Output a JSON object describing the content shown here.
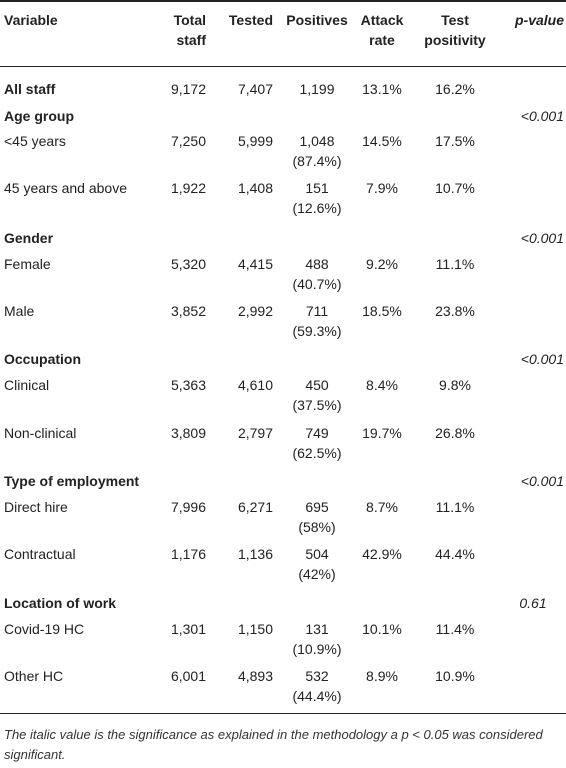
{
  "header": {
    "variable": "Variable",
    "total_staff_l1": "Total",
    "total_staff_l2": "staff",
    "tested": "Tested",
    "positives": "Positives",
    "attack_rate_l1": "Attack",
    "attack_rate_l2": "rate",
    "test_positivity_l1": "Test",
    "test_positivity_l2": "positivity",
    "p_value": "p-value"
  },
  "all_staff": {
    "label": "All staff",
    "total": "9,172",
    "tested": "7,407",
    "positives": "1,199",
    "attack_rate": "13.1%",
    "test_positivity": "16.2%"
  },
  "age": {
    "label": "Age group",
    "p_value": "<0.001",
    "rows": [
      {
        "label": "<45 years",
        "total": "7,250",
        "tested": "5,999",
        "positives": "1,048",
        "positives_pct": "(87.4%)",
        "attack_rate": "14.5%",
        "test_positivity": "17.5%"
      },
      {
        "label": "45 years and above",
        "total": "1,922",
        "tested": "1,408",
        "positives": "151",
        "positives_pct": "(12.6%)",
        "attack_rate": "7.9%",
        "test_positivity": "10.7%"
      }
    ]
  },
  "gender": {
    "label": "Gender",
    "p_value": "<0.001",
    "rows": [
      {
        "label": "Female",
        "total": "5,320",
        "tested": "4,415",
        "positives": "488",
        "positives_pct": "(40.7%)",
        "attack_rate": "9.2%",
        "test_positivity": "11.1%"
      },
      {
        "label": "Male",
        "total": "3,852",
        "tested": "2,992",
        "positives": "711",
        "positives_pct": "(59.3%)",
        "attack_rate": "18.5%",
        "test_positivity": "23.8%"
      }
    ]
  },
  "occupation": {
    "label": "Occupation",
    "p_value": "<0.001",
    "rows": [
      {
        "label": "Clinical",
        "total": "5,363",
        "tested": "4,610",
        "positives": "450",
        "positives_pct": "(37.5%)",
        "attack_rate": "8.4%",
        "test_positivity": "9.8%"
      },
      {
        "label": "Non-clinical",
        "total": "3,809",
        "tested": "2,797",
        "positives": "749",
        "positives_pct": "(62.5%)",
        "attack_rate": "19.7%",
        "test_positivity": "26.8%"
      }
    ]
  },
  "employment": {
    "label": "Type of employment",
    "p_value": "<0.001",
    "rows": [
      {
        "label": "Direct hire",
        "total": "7,996",
        "tested": "6,271",
        "positives": "695",
        "positives_pct": "(58%)",
        "attack_rate": "8.7%",
        "test_positivity": "11.1%"
      },
      {
        "label": "Contractual",
        "total": "1,176",
        "tested": "1,136",
        "positives": "504",
        "positives_pct": "(42%)",
        "attack_rate": "42.9%",
        "test_positivity": "44.4%"
      }
    ]
  },
  "location": {
    "label": "Location of work",
    "p_value": "0.61",
    "rows": [
      {
        "label": "Covid-19 HC",
        "total": "1,301",
        "tested": "1,150",
        "positives": "131",
        "positives_pct": "(10.9%)",
        "attack_rate": "10.1%",
        "test_positivity": "11.4%"
      },
      {
        "label": "Other HC",
        "total": "6,001",
        "tested": "4,893",
        "positives": "532",
        "positives_pct": "(44.4%)",
        "attack_rate": "8.9%",
        "test_positivity": "10.9%"
      }
    ]
  },
  "footnote": "The italic value is the significance as explained in the methodology a p < 0.05 was considered significant."
}
